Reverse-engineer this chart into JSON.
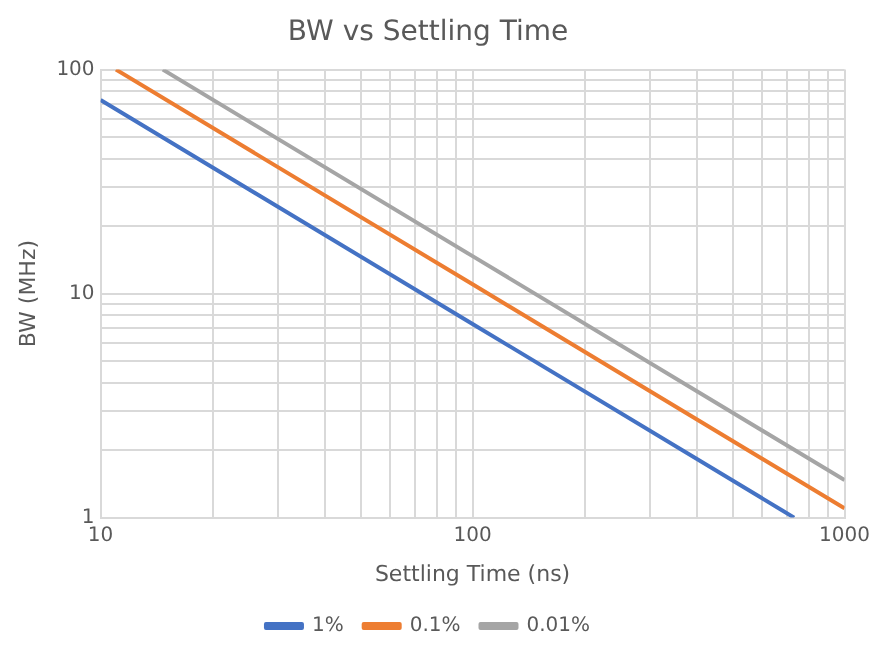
{
  "chart_data": {
    "type": "line",
    "title": "BW vs Settling Time",
    "xlabel": "Settling Time (ns)",
    "ylabel": "BW (MHz)",
    "log": "xy",
    "grid": true,
    "legend": "bottom",
    "marker": "none",
    "line_style": "solid",
    "xlim": [
      10,
      1000
    ],
    "ylim": [
      1,
      100
    ],
    "xticks": [
      10,
      {
        "value": 20,
        "label": null
      },
      {
        "value": 30,
        "label": null
      },
      {
        "value": 40,
        "label": null
      },
      {
        "value": 50,
        "label": null
      },
      {
        "value": 60,
        "label": null
      },
      {
        "value": 70,
        "label": null
      },
      {
        "value": 80,
        "label": null
      },
      {
        "value": 90,
        "label": null
      },
      100,
      {
        "value": 200,
        "label": null
      },
      {
        "value": 300,
        "label": null
      },
      {
        "value": 400,
        "label": null
      },
      {
        "value": 500,
        "label": null
      },
      {
        "value": 600,
        "label": null
      },
      {
        "value": 700,
        "label": null
      },
      {
        "value": 800,
        "label": null
      },
      {
        "value": 900,
        "label": null
      },
      1000
    ],
    "yticks": [
      1,
      {
        "value": 2,
        "label": null
      },
      {
        "value": 3,
        "label": null
      },
      {
        "value": 4,
        "label": null
      },
      {
        "value": 5,
        "label": null
      },
      {
        "value": 6,
        "label": null
      },
      {
        "value": 7,
        "label": null
      },
      {
        "value": 8,
        "label": null
      },
      {
        "value": 9,
        "label": null
      },
      10,
      {
        "value": 20,
        "label": null
      },
      {
        "value": 30,
        "label": null
      },
      {
        "value": 40,
        "label": null
      },
      {
        "value": 50,
        "label": null
      },
      {
        "value": 60,
        "label": null
      },
      {
        "value": 70,
        "label": null
      },
      {
        "value": 80,
        "label": null
      },
      {
        "value": 90,
        "label": null
      },
      100
    ],
    "series": [
      {
        "name": "1%",
        "color": "#4472c4",
        "x": [
          10,
          100,
          732
        ],
        "values": [
          73.2,
          7.32,
          1
        ]
      },
      {
        "name": "0.1%",
        "color": "#ed7d31",
        "x": [
          11,
          100,
          1000
        ],
        "values": [
          100,
          11,
          1.1
        ]
      },
      {
        "name": "0.01%",
        "color": "#a5a5a5",
        "x": [
          14.7,
          100,
          1000
        ],
        "values": [
          100,
          14.7,
          1.47
        ]
      }
    ]
  }
}
